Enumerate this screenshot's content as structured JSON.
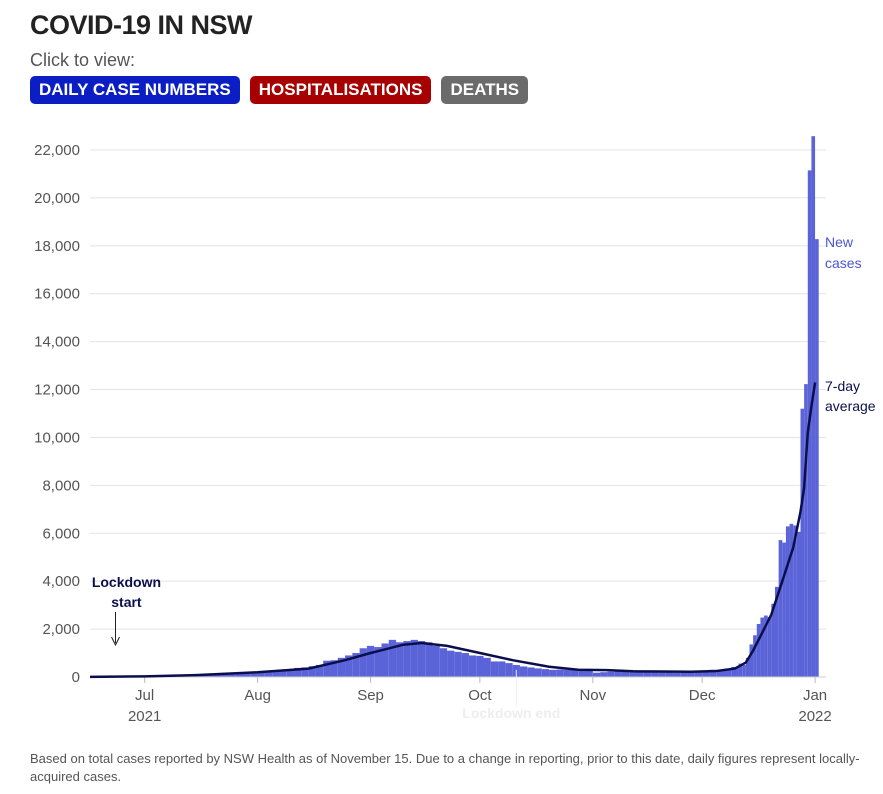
{
  "header": {
    "title": "COVID-19 IN NSW",
    "subtitle": "Click to view:"
  },
  "buttons": [
    {
      "label": "DAILY CASE NUMBERS",
      "color": "#0a1ec4"
    },
    {
      "label": "HOSPITALISATIONS",
      "color": "#a60000"
    },
    {
      "label": "DEATHS",
      "color": "#6b6b6b"
    }
  ],
  "footnote": "Based on total cases reported by NSW Health as of November 15. Due to a change in reporting, prior to this date, daily figures represent locally-acquired cases.",
  "chart_data": {
    "type": "bar",
    "title": "",
    "xlabel": "",
    "ylabel": "",
    "ylim": [
      0,
      22000
    ],
    "y_ticks": [
      0,
      2000,
      4000,
      6000,
      8000,
      10000,
      12000,
      14000,
      16000,
      18000,
      20000,
      22000
    ],
    "y_tick_labels": [
      "0",
      "2,000",
      "4,000",
      "6,000",
      "8,000",
      "10,000",
      "12,000",
      "14,000",
      "16,000",
      "18,000",
      "20,000",
      "22,000"
    ],
    "x_range": [
      "2021-06-16",
      "2022-01-04"
    ],
    "x_ticks": [
      {
        "date": "2021-07-01",
        "label": "Jul",
        "sublabel": "2021"
      },
      {
        "date": "2021-08-01",
        "label": "Aug",
        "sublabel": ""
      },
      {
        "date": "2021-09-01",
        "label": "Sep",
        "sublabel": ""
      },
      {
        "date": "2021-10-01",
        "label": "Oct",
        "sublabel": ""
      },
      {
        "date": "2021-11-01",
        "label": "Nov",
        "sublabel": ""
      },
      {
        "date": "2021-12-01",
        "label": "Dec",
        "sublabel": ""
      },
      {
        "date": "2022-01-01",
        "label": "Jan",
        "sublabel": "2022"
      }
    ],
    "grid": true,
    "series": [
      {
        "name": "New cases",
        "kind": "bar",
        "color": "#5b63d8",
        "points": [
          [
            "2021-06-16",
            3
          ],
          [
            "2021-06-18",
            5
          ],
          [
            "2021-06-20",
            10
          ],
          [
            "2021-06-22",
            15
          ],
          [
            "2021-06-24",
            20
          ],
          [
            "2021-06-26",
            28
          ],
          [
            "2021-06-28",
            20
          ],
          [
            "2021-06-30",
            20
          ],
          [
            "2021-07-02",
            30
          ],
          [
            "2021-07-04",
            35
          ],
          [
            "2021-07-06",
            28
          ],
          [
            "2021-07-08",
            40
          ],
          [
            "2021-07-10",
            60
          ],
          [
            "2021-07-12",
            100
          ],
          [
            "2021-07-14",
            100
          ],
          [
            "2021-07-16",
            110
          ],
          [
            "2021-07-18",
            110
          ],
          [
            "2021-07-20",
            120
          ],
          [
            "2021-07-22",
            130
          ],
          [
            "2021-07-24",
            160
          ],
          [
            "2021-07-26",
            170
          ],
          [
            "2021-07-28",
            200
          ],
          [
            "2021-07-30",
            220
          ],
          [
            "2021-08-01",
            240
          ],
          [
            "2021-08-03",
            230
          ],
          [
            "2021-08-05",
            280
          ],
          [
            "2021-08-07",
            300
          ],
          [
            "2021-08-09",
            300
          ],
          [
            "2021-08-11",
            380
          ],
          [
            "2021-08-13",
            400
          ],
          [
            "2021-08-15",
            450
          ],
          [
            "2021-08-17",
            500
          ],
          [
            "2021-08-19",
            680
          ],
          [
            "2021-08-21",
            700
          ],
          [
            "2021-08-23",
            800
          ],
          [
            "2021-08-25",
            900
          ],
          [
            "2021-08-27",
            1000
          ],
          [
            "2021-08-29",
            1200
          ],
          [
            "2021-08-31",
            1300
          ],
          [
            "2021-09-02",
            1250
          ],
          [
            "2021-09-04",
            1400
          ],
          [
            "2021-09-06",
            1550
          ],
          [
            "2021-09-08",
            1450
          ],
          [
            "2021-09-10",
            1500
          ],
          [
            "2021-09-12",
            1550
          ],
          [
            "2021-09-14",
            1500
          ],
          [
            "2021-09-16",
            1450
          ],
          [
            "2021-09-18",
            1300
          ],
          [
            "2021-09-20",
            1200
          ],
          [
            "2021-09-22",
            1100
          ],
          [
            "2021-09-24",
            1050
          ],
          [
            "2021-09-26",
            1000
          ],
          [
            "2021-09-28",
            900
          ],
          [
            "2021-09-30",
            880
          ],
          [
            "2021-10-02",
            800
          ],
          [
            "2021-10-04",
            650
          ],
          [
            "2021-10-06",
            650
          ],
          [
            "2021-10-08",
            580
          ],
          [
            "2021-10-10",
            500
          ],
          [
            "2021-10-12",
            440
          ],
          [
            "2021-10-14",
            400
          ],
          [
            "2021-10-16",
            360
          ],
          [
            "2021-10-18",
            330
          ],
          [
            "2021-10-20",
            300
          ],
          [
            "2021-10-22",
            310
          ],
          [
            "2021-10-24",
            300
          ],
          [
            "2021-10-26",
            290
          ],
          [
            "2021-10-28",
            280
          ],
          [
            "2021-10-30",
            250
          ],
          [
            "2021-11-01",
            180
          ],
          [
            "2021-11-03",
            200
          ],
          [
            "2021-11-05",
            220
          ],
          [
            "2021-11-07",
            240
          ],
          [
            "2021-11-09",
            250
          ],
          [
            "2021-11-11",
            230
          ],
          [
            "2021-11-13",
            220
          ],
          [
            "2021-11-15",
            200
          ],
          [
            "2021-11-17",
            210
          ],
          [
            "2021-11-19",
            200
          ],
          [
            "2021-11-21",
            190
          ],
          [
            "2021-11-23",
            180
          ],
          [
            "2021-11-25",
            200
          ],
          [
            "2021-11-27",
            250
          ],
          [
            "2021-11-29",
            200
          ],
          [
            "2021-12-01",
            230
          ],
          [
            "2021-12-03",
            300
          ],
          [
            "2021-12-05",
            250
          ],
          [
            "2021-12-07",
            350
          ],
          [
            "2021-12-09",
            420
          ],
          [
            "2021-12-11",
            560
          ],
          [
            "2021-12-12",
            500
          ],
          [
            "2021-12-13",
            800
          ],
          [
            "2021-12-14",
            1360
          ],
          [
            "2021-12-15",
            1742
          ],
          [
            "2021-12-16",
            2213
          ],
          [
            "2021-12-17",
            2482
          ],
          [
            "2021-12-18",
            2566
          ],
          [
            "2021-12-19",
            2501
          ],
          [
            "2021-12-20",
            3057
          ],
          [
            "2021-12-21",
            3763
          ],
          [
            "2021-12-22",
            5715
          ],
          [
            "2021-12-23",
            5612
          ],
          [
            "2021-12-24",
            6288
          ],
          [
            "2021-12-25",
            6394
          ],
          [
            "2021-12-26",
            6324
          ],
          [
            "2021-12-27",
            6062
          ],
          [
            "2021-12-28",
            11201
          ],
          [
            "2021-12-29",
            12226
          ],
          [
            "2021-12-30",
            21151
          ],
          [
            "2021-12-31",
            22577
          ],
          [
            "2022-01-01",
            18278
          ]
        ]
      },
      {
        "name": "7-day average",
        "kind": "line",
        "color": "#0a0f4c",
        "points": [
          [
            "2021-06-16",
            5
          ],
          [
            "2021-07-01",
            25
          ],
          [
            "2021-07-15",
            80
          ],
          [
            "2021-08-01",
            200
          ],
          [
            "2021-08-15",
            350
          ],
          [
            "2021-08-25",
            700
          ],
          [
            "2021-09-01",
            1000
          ],
          [
            "2021-09-10",
            1350
          ],
          [
            "2021-09-15",
            1420
          ],
          [
            "2021-09-22",
            1300
          ],
          [
            "2021-10-01",
            1000
          ],
          [
            "2021-10-10",
            700
          ],
          [
            "2021-10-20",
            430
          ],
          [
            "2021-10-28",
            300
          ],
          [
            "2021-11-05",
            290
          ],
          [
            "2021-11-12",
            240
          ],
          [
            "2021-11-20",
            230
          ],
          [
            "2021-11-28",
            220
          ],
          [
            "2021-12-05",
            250
          ],
          [
            "2021-12-10",
            350
          ],
          [
            "2021-12-13",
            600
          ],
          [
            "2021-12-15",
            1100
          ],
          [
            "2021-12-17",
            1700
          ],
          [
            "2021-12-20",
            2600
          ],
          [
            "2021-12-23",
            4000
          ],
          [
            "2021-12-26",
            5400
          ],
          [
            "2021-12-28",
            6900
          ],
          [
            "2021-12-29",
            7900
          ],
          [
            "2021-12-30",
            10200
          ],
          [
            "2021-12-31",
            11300
          ],
          [
            "2022-01-01",
            12300
          ]
        ]
      }
    ],
    "annotations": [
      {
        "text": [
          "Lockdown",
          "start"
        ],
        "date": "2021-06-26",
        "value": 4000,
        "arrow_to": 1200
      },
      {
        "text": [
          "Lockdown end"
        ],
        "date": "2021-10-11",
        "value": 0
      }
    ],
    "legend": "inline-right"
  }
}
